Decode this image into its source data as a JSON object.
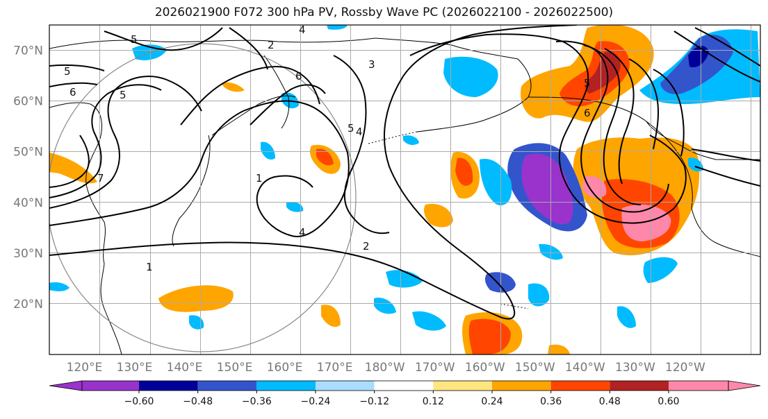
{
  "title": "2026021900 F072 300 hPa PV, Rossby Wave PC (2026022100 - 2026022500)",
  "map": {
    "lat_ticks": [
      "70°N",
      "60°N",
      "50°N",
      "40°N",
      "30°N",
      "20°N"
    ],
    "lat_values": [
      70,
      60,
      50,
      40,
      30,
      20
    ],
    "lon_ticks": [
      "120°E",
      "130°E",
      "140°E",
      "150°E",
      "160°E",
      "170°E",
      "180°W",
      "170°W",
      "160°W",
      "150°W",
      "140°W",
      "130°W",
      "120°W"
    ],
    "lon_values": [
      120,
      130,
      140,
      150,
      160,
      170,
      180,
      190,
      200,
      210,
      220,
      230,
      240
    ],
    "lat_range": [
      10,
      75
    ],
    "lon_range": [
      113,
      255
    ],
    "contour_labels": [
      "5",
      "6",
      "5",
      "4",
      "5",
      "6",
      "6",
      "4",
      "5",
      "3",
      "4",
      "2",
      "1",
      "1",
      "7",
      "2",
      "5"
    ],
    "grid": true
  },
  "colorbar": {
    "colors": [
      "#9933cc",
      "#000099",
      "#3355cc",
      "#00bbff",
      "#aaddff",
      "#ffffff",
      "#ffe680",
      "#ffa500",
      "#ff4500",
      "#b22222",
      "#ff88aa"
    ],
    "labels": [
      "−0.60",
      "−0.48",
      "−0.36",
      "−0.24",
      "−0.12",
      "0.12",
      "0.24",
      "0.36",
      "0.48",
      "0.60"
    ],
    "values": [
      -0.6,
      -0.48,
      -0.36,
      -0.24,
      -0.12,
      0.12,
      0.24,
      0.36,
      0.48,
      0.6
    ]
  }
}
